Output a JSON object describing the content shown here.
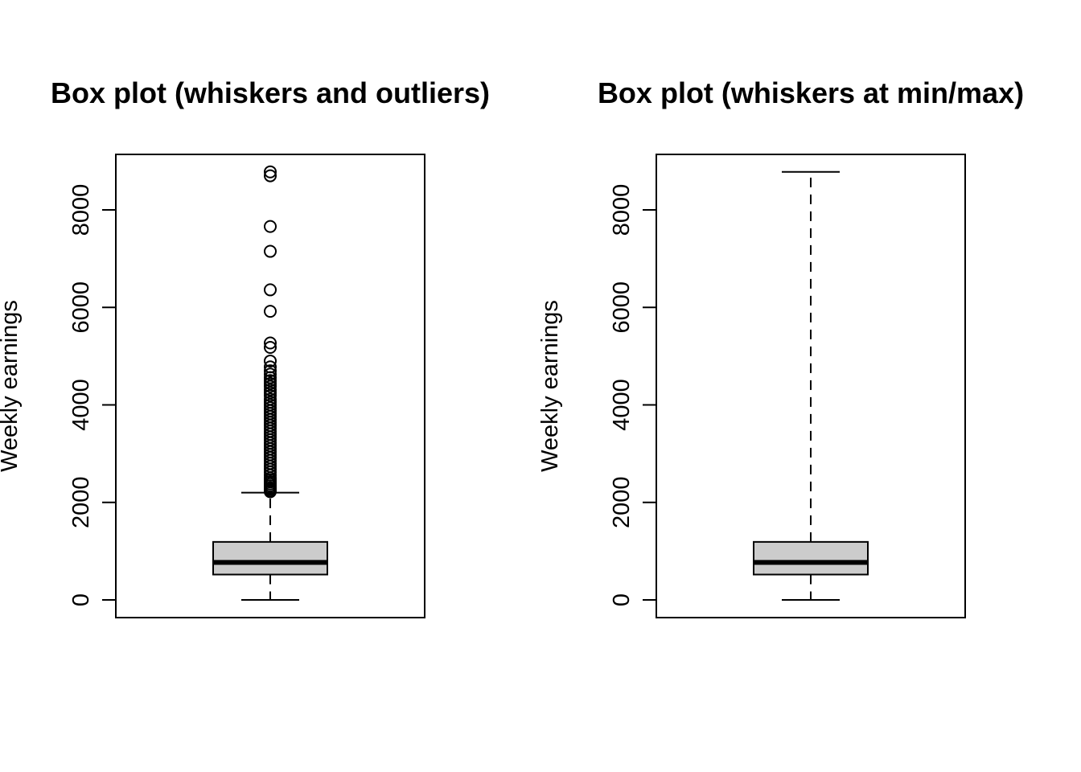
{
  "chart_data": [
    {
      "type": "boxplot",
      "title": "Box plot (whiskers and outliers)",
      "ylabel": "Weekly earnings",
      "xlabel": "",
      "ylim": [
        0,
        9000
      ],
      "yticks": [
        0,
        2000,
        4000,
        6000,
        8000
      ],
      "yticklabels": [
        "0",
        "2000",
        "4000",
        "6000",
        "8000"
      ],
      "box": {
        "min": 0,
        "q1": 520,
        "median": 770,
        "q3": 1190,
        "max": 2200
      },
      "outliers": [
        8780,
        8700,
        7660,
        7150,
        6360,
        5920,
        5270,
        5180,
        4900,
        4780,
        4700,
        4630,
        4560,
        4500,
        4440,
        4380,
        4310,
        4250,
        4190,
        4120,
        4060,
        4000,
        3940,
        3880,
        3820,
        3760,
        3700,
        3640,
        3580,
        3520,
        3460,
        3400,
        3340,
        3280,
        3220,
        3160,
        3100,
        3040,
        2980,
        2920,
        2860,
        2800,
        2740,
        2680,
        2620,
        2560,
        2500,
        2460,
        2420,
        2380,
        2340,
        2300,
        2270,
        2240,
        2220
      ]
    },
    {
      "type": "boxplot",
      "title": "Box plot (whiskers at min/max)",
      "ylabel": "Weekly earnings",
      "xlabel": "",
      "ylim": [
        0,
        9000
      ],
      "yticks": [
        0,
        2000,
        4000,
        6000,
        8000
      ],
      "yticklabels": [
        "0",
        "2000",
        "4000",
        "6000",
        "8000"
      ],
      "box": {
        "min": 0,
        "q1": 520,
        "median": 770,
        "q3": 1190,
        "max": 8780
      },
      "outliers": []
    }
  ],
  "colors": {
    "box_fill": "#cccccc",
    "stroke": "#000000",
    "background": "#ffffff"
  }
}
